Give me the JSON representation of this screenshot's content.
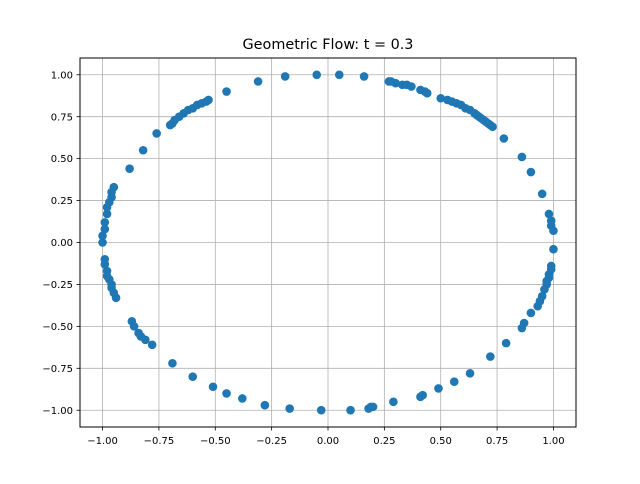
{
  "chart_data": {
    "type": "scatter",
    "title": "Geometric Flow: t = 0.3",
    "xlabel": "",
    "ylabel": "",
    "xlim": [
      -1.1,
      1.1
    ],
    "ylim": [
      -1.1,
      1.1
    ],
    "grid": true,
    "marker_color": "#1f77b4",
    "x_ticks": [
      -1.0,
      -0.75,
      -0.5,
      -0.25,
      0.0,
      0.25,
      0.5,
      0.75,
      1.0
    ],
    "y_ticks": [
      -1.0,
      -0.75,
      -0.5,
      -0.25,
      0.0,
      0.25,
      0.5,
      0.75,
      1.0
    ],
    "x_tick_labels": [
      "−1.00",
      "−0.75",
      "−0.50",
      "−0.25",
      "0.00",
      "0.25",
      "0.50",
      "0.75",
      "1.00"
    ],
    "y_tick_labels": [
      "−1.00",
      "−0.75",
      "−0.50",
      "−0.25",
      "0.00",
      "0.25",
      "0.50",
      "0.75",
      "1.00"
    ],
    "series": [
      {
        "x": [
          -0.05,
          0.05,
          0.16,
          0.27,
          0.28,
          0.3,
          0.33,
          0.35,
          0.37,
          0.41,
          0.43,
          0.44,
          0.5,
          0.53,
          0.55,
          0.57,
          0.59,
          0.61,
          0.63,
          0.65,
          0.66,
          0.67,
          0.68,
          0.69,
          0.7,
          0.71,
          0.72,
          0.73,
          0.78,
          0.86,
          0.9,
          0.95,
          0.98,
          0.99,
          0.99,
          1.0,
          1.0,
          0.99,
          0.99,
          0.98,
          0.98,
          0.97,
          0.97,
          0.96,
          0.95,
          0.94,
          0.93,
          0.9,
          0.87,
          0.86,
          0.79,
          0.72,
          0.63,
          0.56,
          0.49,
          0.42,
          0.41,
          0.29,
          0.2,
          0.19,
          0.18,
          0.1,
          -0.03,
          -0.17,
          -0.28,
          -0.38,
          -0.45,
          -0.51,
          -0.6,
          -0.69,
          -0.78,
          -0.81,
          -0.83,
          -0.84,
          -0.86,
          -0.87,
          -0.94,
          -0.95,
          -0.96,
          -0.96,
          -0.97,
          -0.98,
          -0.98,
          -0.99,
          -0.99,
          -1.0,
          -1.0,
          -0.99,
          -0.99,
          -0.98,
          -0.98,
          -0.97,
          -0.96,
          -0.96,
          -0.95,
          -0.88,
          -0.82,
          -0.76,
          -0.7,
          -0.69,
          -0.68,
          -0.66,
          -0.64,
          -0.62,
          -0.6,
          -0.58,
          -0.56,
          -0.54,
          -0.53,
          -0.45,
          -0.31,
          -0.19
        ],
        "y": [
          1.0,
          1.0,
          0.99,
          0.96,
          0.96,
          0.95,
          0.94,
          0.94,
          0.93,
          0.91,
          0.9,
          0.89,
          0.86,
          0.85,
          0.84,
          0.83,
          0.82,
          0.8,
          0.79,
          0.77,
          0.76,
          0.75,
          0.74,
          0.73,
          0.72,
          0.71,
          0.7,
          0.69,
          0.62,
          0.51,
          0.42,
          0.29,
          0.17,
          0.13,
          0.1,
          0.07,
          -0.04,
          -0.14,
          -0.16,
          -0.19,
          -0.21,
          -0.23,
          -0.25,
          -0.28,
          -0.32,
          -0.35,
          -0.38,
          -0.42,
          -0.48,
          -0.51,
          -0.6,
          -0.68,
          -0.78,
          -0.83,
          -0.87,
          -0.91,
          -0.92,
          -0.95,
          -0.98,
          -0.98,
          -0.99,
          -1.0,
          -1.0,
          -0.99,
          -0.97,
          -0.93,
          -0.9,
          -0.86,
          -0.8,
          -0.72,
          -0.61,
          -0.58,
          -0.56,
          -0.54,
          -0.5,
          -0.47,
          -0.33,
          -0.3,
          -0.27,
          -0.25,
          -0.22,
          -0.2,
          -0.17,
          -0.13,
          -0.1,
          0.0,
          0.04,
          0.08,
          0.12,
          0.17,
          0.21,
          0.24,
          0.27,
          0.3,
          0.33,
          0.44,
          0.55,
          0.65,
          0.7,
          0.71,
          0.73,
          0.75,
          0.77,
          0.79,
          0.8,
          0.82,
          0.83,
          0.84,
          0.85,
          0.9,
          0.96,
          0.99
        ]
      }
    ]
  }
}
